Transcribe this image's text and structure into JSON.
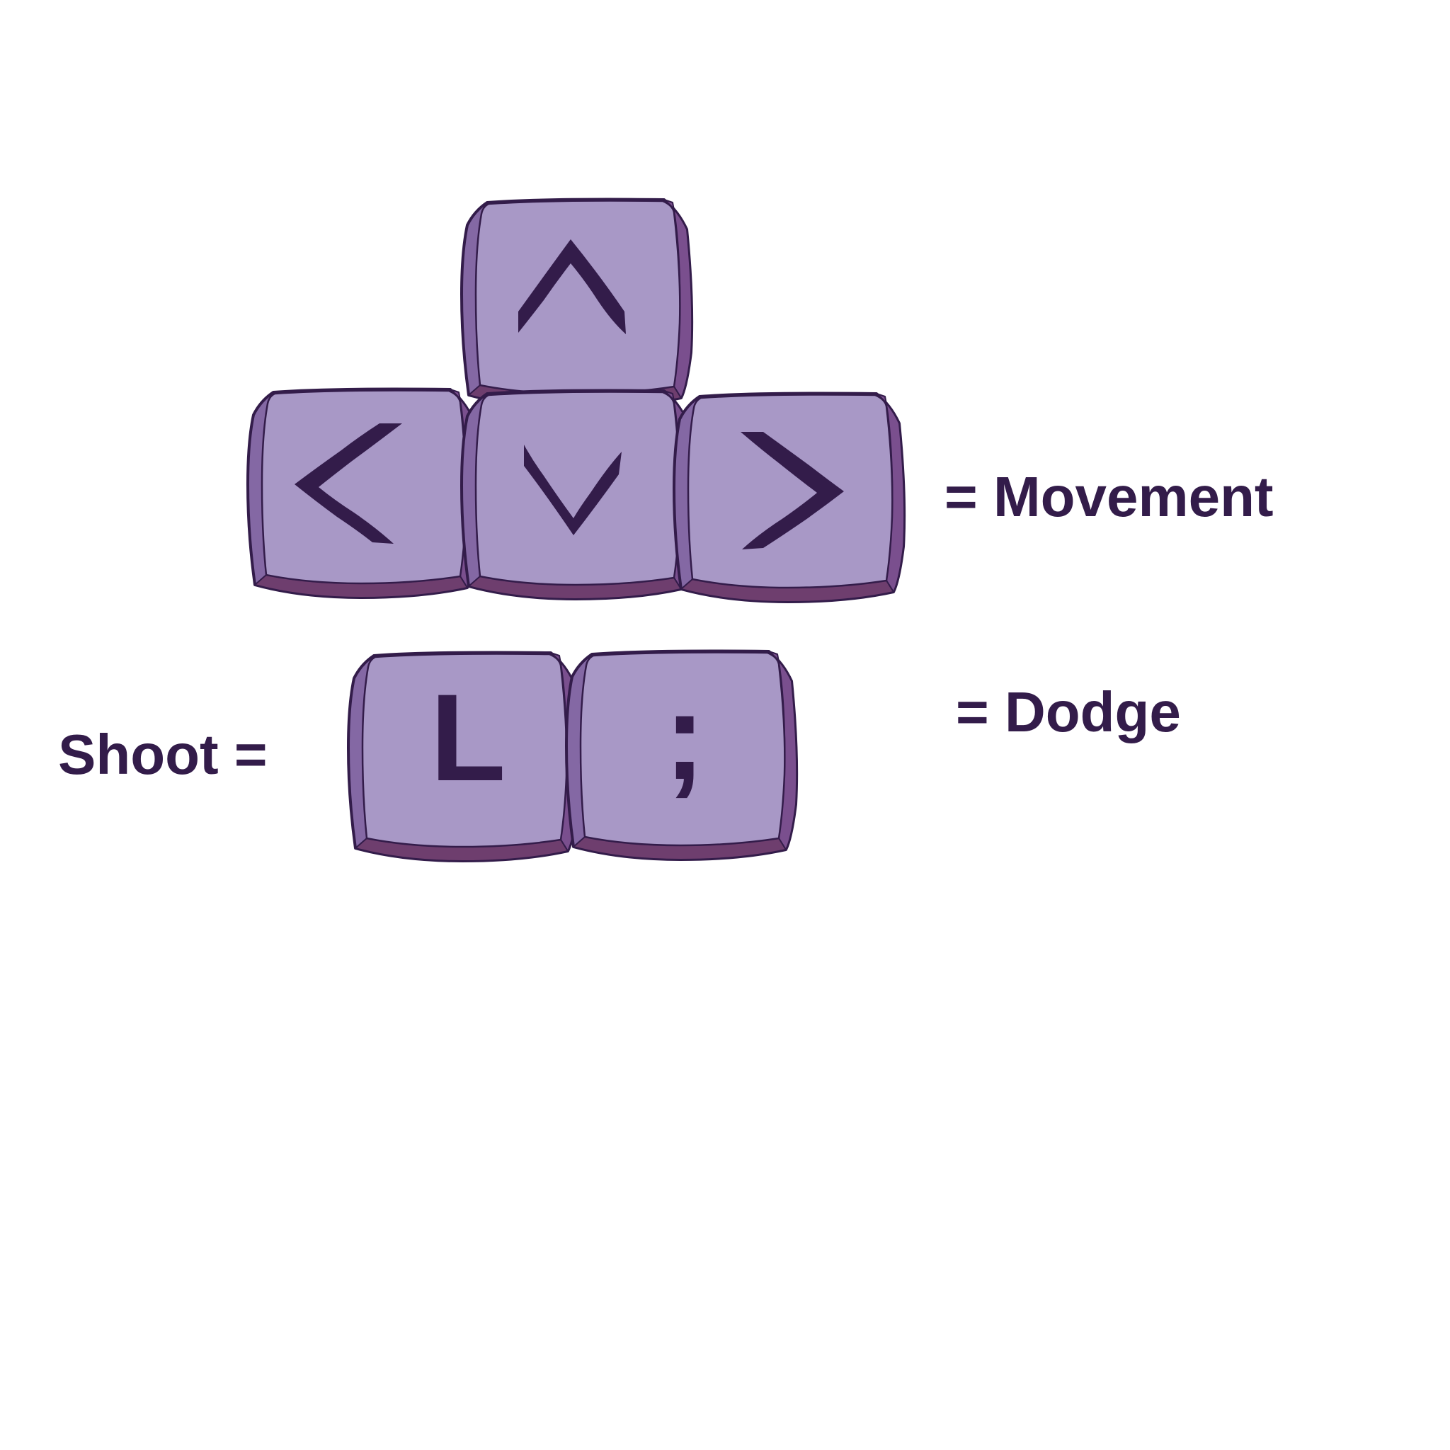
{
  "colors": {
    "background": "#ffffff",
    "key_face": "#a898c6",
    "key_side_light": "#8468a4",
    "key_side_dark": "#6e3e6e",
    "key_outline": "#331c4a",
    "text": "#331c4a"
  },
  "movement": {
    "label": "= Movement",
    "keys": [
      {
        "name": "up",
        "icon": "caret-up-icon"
      },
      {
        "name": "left",
        "icon": "caret-left-icon"
      },
      {
        "name": "down",
        "icon": "caret-down-icon"
      },
      {
        "name": "right",
        "icon": "caret-right-icon"
      }
    ]
  },
  "shoot": {
    "label": "Shoot =",
    "key_char": "L"
  },
  "dodge": {
    "label": "= Dodge",
    "key_char": ";"
  }
}
